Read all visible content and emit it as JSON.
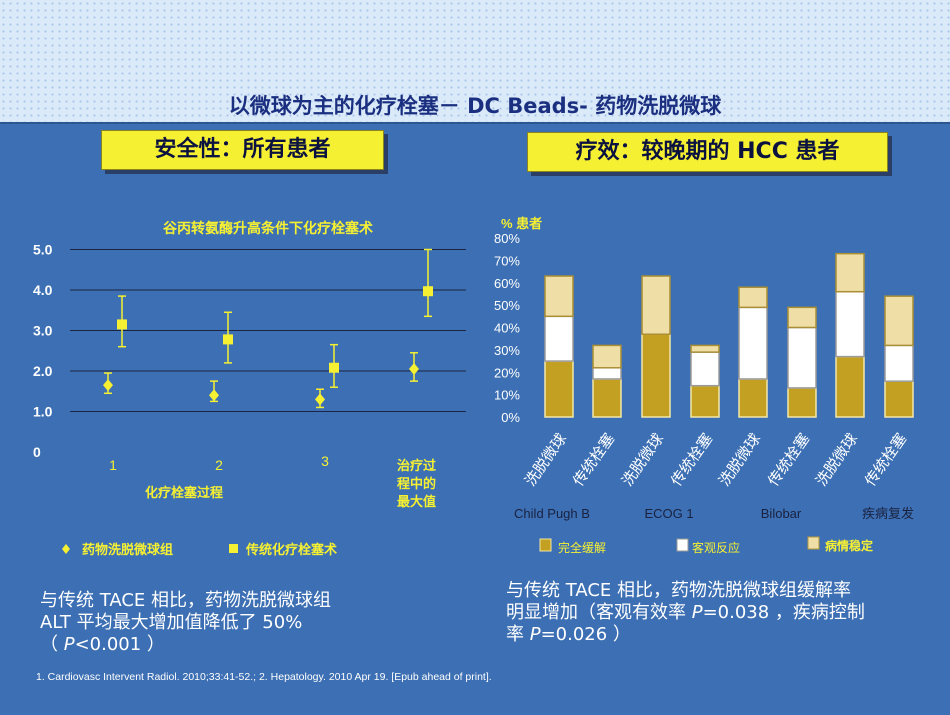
{
  "title": "以微球为主的化疗栓塞－ DC Beads- 药物洗脱微球",
  "left": {
    "header": "安全性：所有患者",
    "chart_title": "谷丙转氨酶升高条件下化疗栓塞术",
    "xlabel": "化疗栓塞过程",
    "legend": [
      "药物洗脱微球组",
      "传统化疗栓塞术"
    ],
    "conclusion": {
      "line1": "与传统 TACE 相比，药物洗脱微球组",
      "line2": "ALT 平均最大增加值降低了 50%",
      "line3_pre": "（ ",
      "p": "P",
      "line3_post": "<0.001 ）"
    }
  },
  "right": {
    "header": "疗效：较晚期的 HCC 患者",
    "ylabel": "%  患者",
    "groups": [
      "Child Pugh B",
      "ECOG 1",
      "Bilobar",
      "疾病复发"
    ],
    "legend": [
      "完全缓解",
      "客观反应",
      "病情稳定"
    ],
    "conclusion": {
      "line1": "与传统 TACE 相比，药物洗脱微球组缓解率",
      "line2_pre": "明显增加（客观有效率 ",
      "p": "P",
      "line2_post": "=0.038 ，疾病控制",
      "line3_pre": "率 ",
      "line3_post": "=0.026 ）"
    }
  },
  "reference": "1. Cardiovasc Intervent Radiol. 2010;33:41-52.;  2. Hepatology. 2010 Apr 19. [Epub ahead of print].",
  "colors": {
    "background": "#3c6fb3",
    "accent_yellow": "#f6f033",
    "gold": "#c39f22"
  },
  "chart_data": [
    {
      "type": "scatter",
      "title": "谷丙转氨酶升高条件下化疗栓塞术",
      "xlabel": "化疗栓塞过程",
      "ylabel": "",
      "categories": [
        "1",
        "2",
        "3",
        "治疗过程中的最大值"
      ],
      "ylim": [
        0,
        5
      ],
      "yticks": [
        "0",
        "1.0",
        "2.0",
        "3.0",
        "4.0",
        "5.0"
      ],
      "grid": true,
      "legend_position": "bottom",
      "series": [
        {
          "name": "药物洗脱微球组",
          "marker": "diamond",
          "values": [
            1.65,
            1.4,
            1.3,
            2.05
          ],
          "err_low": [
            1.45,
            1.25,
            1.1,
            1.75
          ],
          "err_high": [
            1.95,
            1.75,
            1.55,
            2.45
          ]
        },
        {
          "name": "传统化疗栓塞术",
          "marker": "square",
          "values": [
            3.15,
            2.78,
            2.08,
            3.97
          ],
          "err_low": [
            2.6,
            2.2,
            1.6,
            3.35
          ],
          "err_high": [
            3.85,
            3.45,
            2.65,
            5.0
          ]
        }
      ]
    },
    {
      "type": "bar",
      "stacked": true,
      "ylabel": "%  患者",
      "categories": [
        "洗脱微球",
        "传统栓塞",
        "洗脱微球",
        "传统栓塞",
        "洗脱微球",
        "传统栓塞",
        "洗脱微球",
        "传统栓塞"
      ],
      "groups": [
        "Child Pugh B",
        "ECOG 1",
        "Bilobar",
        "疾病复发"
      ],
      "ylim": [
        0,
        80
      ],
      "yticks": [
        "0%",
        "10%",
        "20%",
        "30%",
        "40%",
        "50%",
        "60%",
        "70%",
        "80%"
      ],
      "legend_position": "bottom",
      "series": [
        {
          "name": "完全缓解",
          "values": [
            25,
            17,
            37,
            14,
            17,
            13,
            27,
            16
          ]
        },
        {
          "name": "客观反应",
          "values": [
            20,
            5,
            0,
            15,
            32,
            27,
            29,
            16
          ]
        },
        {
          "name": "病情稳定",
          "values": [
            18,
            10,
            26,
            3,
            9,
            9,
            17,
            22
          ]
        }
      ]
    }
  ]
}
